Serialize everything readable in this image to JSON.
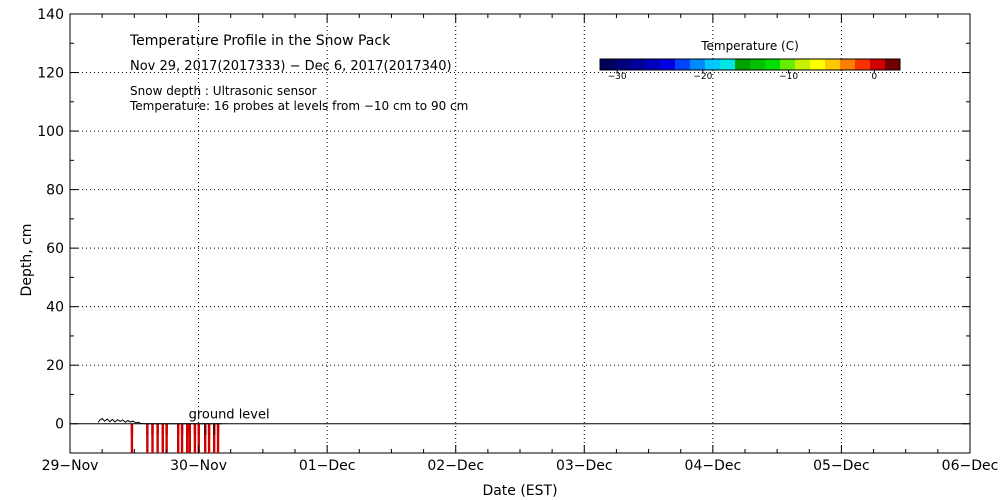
{
  "chart_data": {
    "type": "heatmap",
    "title": "Temperature Profile in the Snow Pack",
    "date_range": "Nov 29, 2017(2017333) − Dec  6, 2017(2017340)",
    "info_lines": [
      "Snow depth : Ultrasonic sensor",
      "Temperature: 16 probes at levels from −10 cm to 90 cm"
    ],
    "xlabel": "Date (EST)",
    "ylabel": "Depth, cm",
    "x_ticks": [
      "29−Nov",
      "30−Nov",
      "01−Dec",
      "02−Dec",
      "03−Dec",
      "04−Dec",
      "05−Dec",
      "06−Dec"
    ],
    "x_range_days": [
      0,
      7
    ],
    "y_ticks": [
      0,
      20,
      40,
      60,
      80,
      100,
      120,
      140
    ],
    "ylim": [
      -10,
      140
    ],
    "grid": true,
    "ground_level_label": "ground level",
    "ground_level": 0,
    "colorbar": {
      "title": "Temperature (C)",
      "range": [
        -32,
        3
      ],
      "ticks": [
        -30,
        -20,
        -10,
        0
      ],
      "tick_labels": [
        "−30",
        "−20",
        "−10",
        "0"
      ],
      "colors": [
        "#00005a",
        "#00007a",
        "#000098",
        "#0000bb",
        "#0000e0",
        "#0044ff",
        "#0088ff",
        "#00c8ff",
        "#00e6e6",
        "#00a000",
        "#00c000",
        "#00e000",
        "#66ee00",
        "#c8f000",
        "#ffff00",
        "#ffc800",
        "#ff8000",
        "#ff3000",
        "#d00000",
        "#700000"
      ]
    },
    "snow_depth_series": {
      "x_days": [
        0.22,
        0.23,
        0.25,
        0.27,
        0.29,
        0.31,
        0.33,
        0.35,
        0.37,
        0.39,
        0.41,
        0.43,
        0.45,
        0.47,
        0.49,
        0.51,
        0.53,
        0.55,
        0.58,
        0.62,
        0.66,
        0.7,
        0.74,
        0.78,
        0.82,
        0.86,
        0.9,
        0.94,
        0.98,
        1.02,
        1.06,
        1.1,
        1.14,
        1.18
      ],
      "y_cm": [
        0.4,
        1.2,
        1.8,
        0.9,
        1.6,
        0.7,
        1.5,
        0.6,
        1.4,
        0.8,
        1.3,
        0.5,
        1.1,
        0.6,
        0.9,
        0.3,
        0.5,
        0.1,
        0,
        0,
        0,
        0,
        0,
        0,
        0,
        0,
        0,
        0,
        0,
        0,
        0,
        0,
        0,
        0
      ]
    },
    "temperature_samples": [
      {
        "x_day": 0.48,
        "temp_c": 0.5
      },
      {
        "x_day": 0.6,
        "temp_c": 0.5
      },
      {
        "x_day": 0.64,
        "temp_c": 0.5
      },
      {
        "x_day": 0.68,
        "temp_c": 0.5
      },
      {
        "x_day": 0.72,
        "temp_c": 0.5
      },
      {
        "x_day": 0.75,
        "temp_c": 0.5
      },
      {
        "x_day": 0.84,
        "temp_c": 0.5
      },
      {
        "x_day": 0.87,
        "temp_c": 0.5
      },
      {
        "x_day": 0.91,
        "temp_c": 0.5
      },
      {
        "x_day": 0.93,
        "temp_c": 1.0
      },
      {
        "x_day": 0.97,
        "temp_c": 0.5
      },
      {
        "x_day": 1.0,
        "temp_c": 1.0
      },
      {
        "x_day": 1.05,
        "temp_c": 1.5
      },
      {
        "x_day": 1.08,
        "temp_c": 1.0
      },
      {
        "x_day": 1.12,
        "temp_c": 1.5
      },
      {
        "x_day": 1.15,
        "temp_c": 1.0
      }
    ]
  }
}
